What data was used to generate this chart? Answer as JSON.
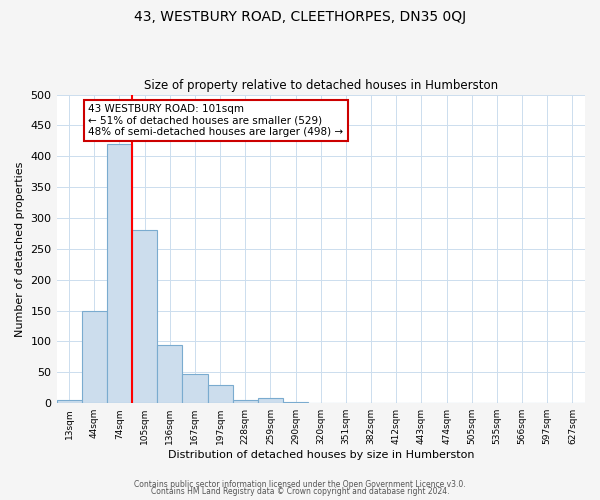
{
  "title": "43, WESTBURY ROAD, CLEETHORPES, DN35 0QJ",
  "subtitle": "Size of property relative to detached houses in Humberston",
  "xlabel": "Distribution of detached houses by size in Humberston",
  "ylabel": "Number of detached properties",
  "bar_labels": [
    "13sqm",
    "44sqm",
    "74sqm",
    "105sqm",
    "136sqm",
    "167sqm",
    "197sqm",
    "228sqm",
    "259sqm",
    "290sqm",
    "320sqm",
    "351sqm",
    "382sqm",
    "412sqm",
    "443sqm",
    "474sqm",
    "505sqm",
    "535sqm",
    "566sqm",
    "597sqm",
    "627sqm"
  ],
  "bar_values": [
    5,
    150,
    420,
    280,
    95,
    48,
    30,
    5,
    8,
    2,
    0,
    0,
    0,
    0,
    0,
    0,
    0,
    0,
    0,
    0,
    0
  ],
  "bar_color": "#ccdded",
  "bar_edge_color": "#7aabcf",
  "red_line_index": 3,
  "ylim": [
    0,
    500
  ],
  "yticks": [
    0,
    50,
    100,
    150,
    200,
    250,
    300,
    350,
    400,
    450,
    500
  ],
  "annotation_title": "43 WESTBURY ROAD: 101sqm",
  "annotation_line1": "← 51% of detached houses are smaller (529)",
  "annotation_line2": "48% of semi-detached houses are larger (498) →",
  "footer1": "Contains HM Land Registry data © Crown copyright and database right 2024.",
  "footer2": "Contains public sector information licensed under the Open Government Licence v3.0.",
  "background_color": "#f5f5f5",
  "plot_background": "#ffffff",
  "grid_color": "#ccddee"
}
